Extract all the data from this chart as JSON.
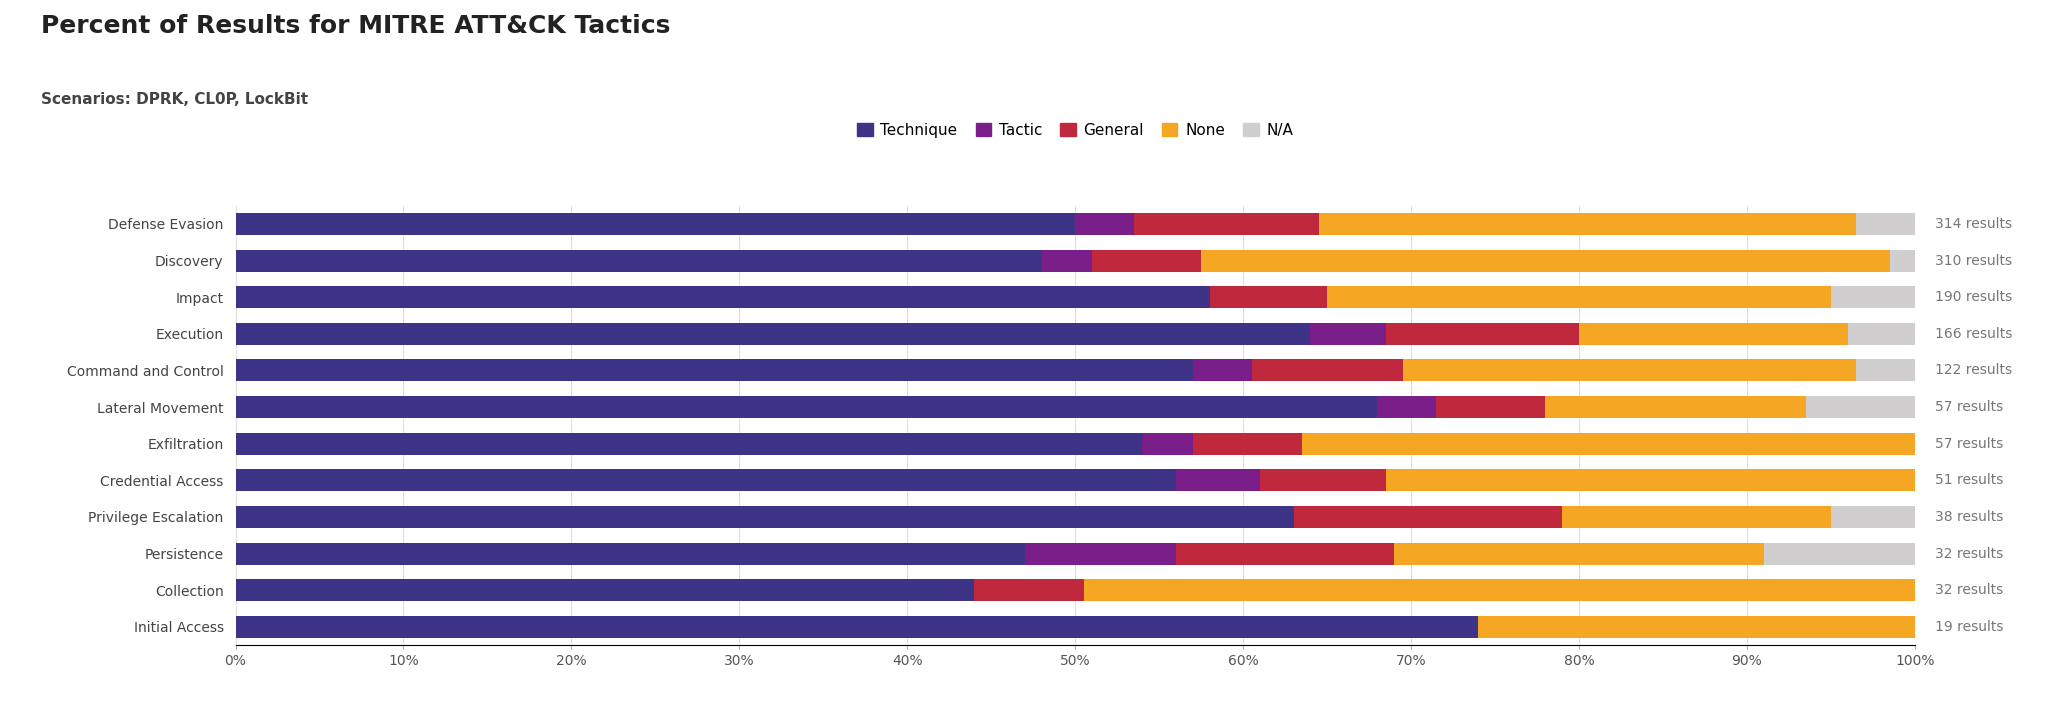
{
  "title": "Percent of Results for MITRE ATT&CK Tactics",
  "subtitle": "Scenarios: DPRK, CL0P, LockBit",
  "categories": [
    "Defense Evasion",
    "Discovery",
    "Impact",
    "Execution",
    "Command and Control",
    "Lateral Movement",
    "Exfiltration",
    "Credential Access",
    "Privilege Escalation",
    "Persistence",
    "Collection",
    "Initial Access"
  ],
  "results_counts": [
    314,
    310,
    190,
    166,
    122,
    57,
    57,
    51,
    38,
    32,
    32,
    19
  ],
  "segments": {
    "Technique": [
      50.0,
      48.0,
      58.0,
      64.0,
      57.0,
      68.0,
      54.0,
      56.0,
      63.0,
      47.0,
      44.0,
      74.0
    ],
    "Tactic": [
      3.5,
      3.0,
      0.0,
      4.5,
      3.5,
      3.5,
      3.0,
      5.0,
      0.0,
      9.0,
      0.0,
      0.0
    ],
    "General": [
      11.0,
      6.5,
      7.0,
      11.5,
      9.0,
      6.5,
      6.5,
      7.5,
      16.0,
      13.0,
      6.5,
      0.0
    ],
    "None": [
      32.0,
      41.0,
      30.0,
      16.0,
      27.0,
      15.5,
      36.5,
      31.5,
      16.0,
      22.0,
      49.5,
      26.0
    ],
    "N/A": [
      3.5,
      1.5,
      5.0,
      4.0,
      3.5,
      6.5,
      0.0,
      0.0,
      5.0,
      9.0,
      0.0,
      0.0
    ]
  },
  "colors": {
    "Technique": "#3d3487",
    "Tactic": "#7a1f8a",
    "General": "#c0283e",
    "None": "#f5a623",
    "N/A": "#d0cece"
  },
  "legend_order": [
    "Technique",
    "Tactic",
    "General",
    "None",
    "N/A"
  ],
  "background_color": "#ffffff",
  "title_fontsize": 18,
  "subtitle_fontsize": 11,
  "tick_fontsize": 10,
  "label_fontsize": 10,
  "results_fontsize": 10
}
